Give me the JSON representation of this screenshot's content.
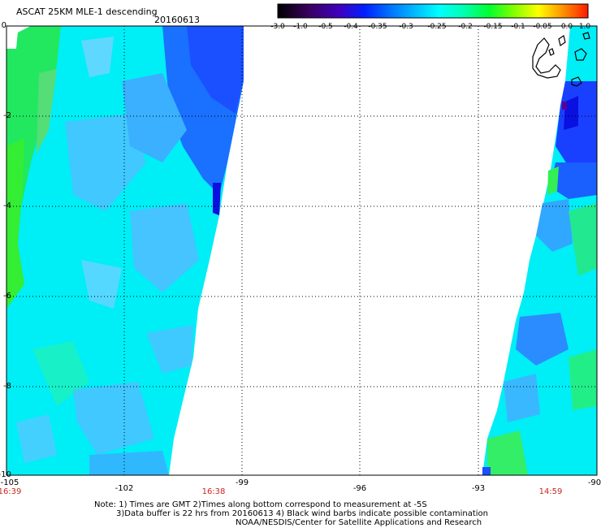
{
  "header": {
    "title": "ASCAT 25KM MLE-1 descending",
    "date": "20160613"
  },
  "colorbar": {
    "labels": [
      "-3.0",
      "-1.0",
      "-0.5",
      "-0.4",
      "-0.35",
      "-0.3",
      "-0.25",
      "-0.2",
      "-0.15",
      "-0.1",
      "-0.05",
      "0.0",
      "1.0"
    ],
    "colors": [
      "#1a0020",
      "#5a0090",
      "#0010ff",
      "#0050ff",
      "#0090ff",
      "#00c8ff",
      "#00ffff",
      "#00ffb0",
      "#00ff40",
      "#80ff00",
      "#ffff00",
      "#ffa000",
      "#ff2000"
    ]
  },
  "map": {
    "lon_range": [
      -105,
      -90
    ],
    "lat_range": [
      -10,
      0
    ],
    "x_ticks": [
      "-105",
      "-102",
      "-99",
      "-96",
      "-93",
      "-90"
    ],
    "y_ticks": [
      "0",
      "-2",
      "-4",
      "-6",
      "-8",
      "-10"
    ],
    "bottom_times": [
      "16:39",
      "16:38",
      "14:59"
    ],
    "swath_colors": {
      "green": "#33ee33",
      "green2": "#22dd66",
      "cyan": "#00f0f0",
      "cyan2": "#00e8ff",
      "lightblue": "#33c4ff",
      "blue": "#1a60ff",
      "darkblue": "#1430ff",
      "deepblue": "#0a10e0",
      "purple": "#5a0090"
    }
  },
  "notes": {
    "line1": "Note: 1) Times are GMT 2)Times along bottom correspond to measurement at -5S",
    "line2": "3)Data buffer is 22 hrs from 20160613 4) Black wind barbs indicate possible contamination",
    "line3": "NOAA/NESDIS/Center for Satellite Applications and Research"
  }
}
